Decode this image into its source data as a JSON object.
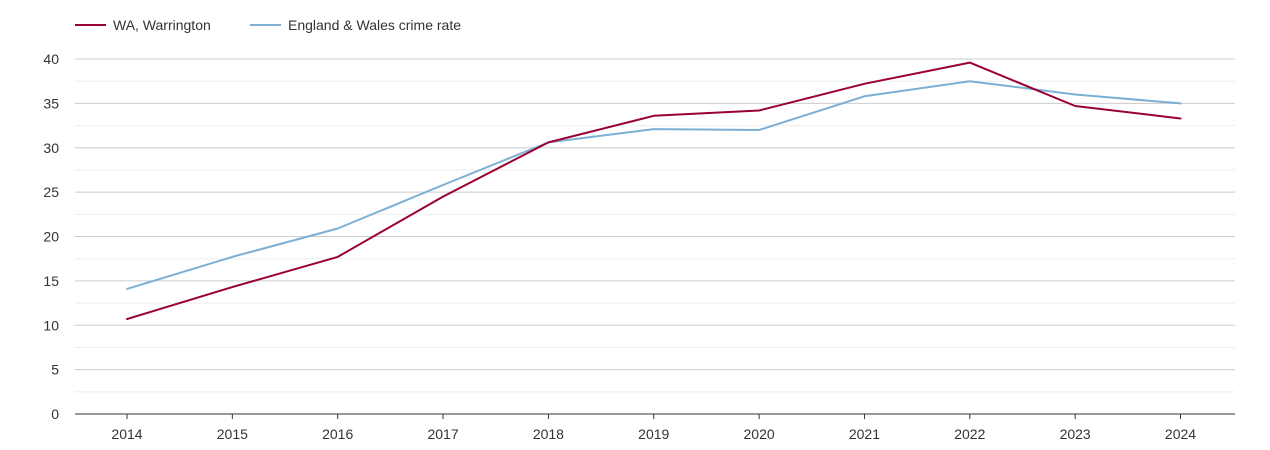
{
  "chart_data": {
    "type": "line",
    "x": [
      "2014",
      "2015",
      "2016",
      "2017",
      "2018",
      "2019",
      "2020",
      "2021",
      "2022",
      "2023",
      "2024"
    ],
    "yticks": [
      0,
      5,
      10,
      15,
      20,
      25,
      30,
      35,
      40
    ],
    "ylim": [
      0,
      40
    ],
    "grid": true,
    "legend_position": "top-left",
    "series": [
      {
        "name": "WA, Warrington",
        "color": "#990033",
        "values": [
          10.7,
          14.3,
          17.7,
          24.5,
          30.6,
          33.6,
          34.2,
          37.2,
          39.6,
          34.7,
          33.3
        ]
      },
      {
        "name": "England & Wales crime rate",
        "color": "#7bafd4",
        "values": [
          14.1,
          17.7,
          20.9,
          25.8,
          30.6,
          32.1,
          32.0,
          35.8,
          37.5,
          36.0,
          35.0
        ]
      }
    ]
  }
}
